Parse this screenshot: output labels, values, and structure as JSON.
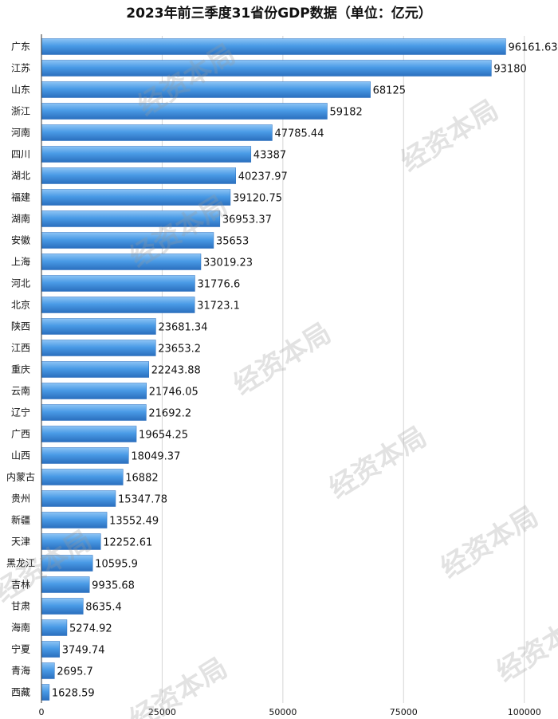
{
  "chart_data": {
    "type": "bar",
    "orientation": "horizontal",
    "title": "2023年前三季度31省份GDP数据（单位：亿元）",
    "categories": [
      "广东",
      "江苏",
      "山东",
      "浙江",
      "河南",
      "四川",
      "湖北",
      "福建",
      "湖南",
      "安徽",
      "上海",
      "河北",
      "北京",
      "陕西",
      "江西",
      "重庆",
      "云南",
      "辽宁",
      "广西",
      "山西",
      "内蒙古",
      "贵州",
      "新疆",
      "天津",
      "黑龙江",
      "吉林",
      "甘肃",
      "海南",
      "宁夏",
      "青海",
      "西藏"
    ],
    "values": [
      96161.63,
      93180,
      68125,
      59182,
      47785.44,
      43387,
      40237.97,
      39120.75,
      36953.37,
      35653,
      33019.23,
      31776.6,
      31723.1,
      23681.34,
      23653.2,
      22243.88,
      21746.05,
      21692.2,
      19654.25,
      18049.37,
      16882,
      15347.78,
      13552.49,
      12252.61,
      10595.9,
      9935.68,
      8635.4,
      5274.92,
      3749.74,
      2695.7,
      1628.59
    ],
    "value_labels": [
      "96161.63",
      "93180",
      "68125",
      "59182",
      "47785.44",
      "43387",
      "40237.97",
      "39120.75",
      "36953.37",
      "35653",
      "33019.23",
      "31776.6",
      "31723.1",
      "23681.34",
      "23653.2",
      "22243.88",
      "21746.05",
      "21692.2",
      "19654.25",
      "18049.37",
      "16882",
      "15347.78",
      "13552.49",
      "12252.61",
      "10595.9",
      "9935.68",
      "8635.4",
      "5274.92",
      "3749.74",
      "2695.7",
      "1628.59"
    ],
    "xlim": [
      0,
      105000
    ],
    "x_ticks": [
      0,
      25000,
      50000,
      75000,
      100000
    ],
    "x_tick_labels": [
      "0",
      "25000",
      "50000",
      "75000",
      "100000"
    ],
    "grid": "vertical",
    "bar_color": "#3b8fe0"
  },
  "watermark": "经资本局"
}
